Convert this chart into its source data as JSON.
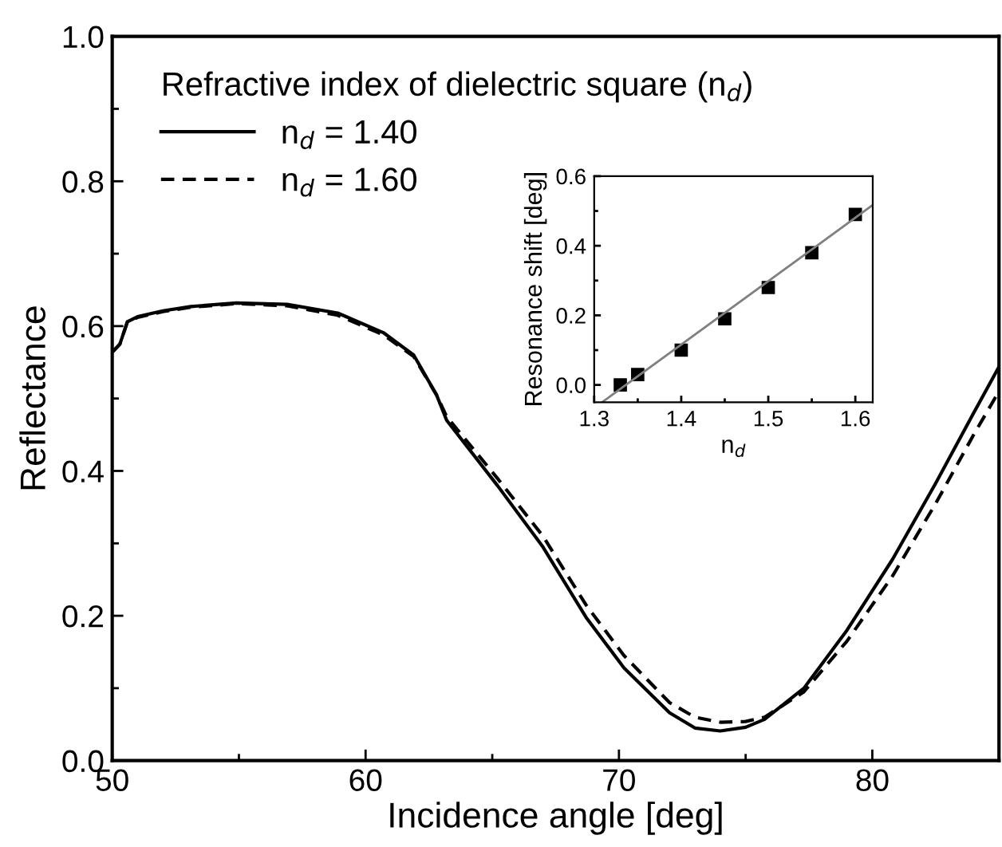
{
  "chart_data": [
    {
      "type": "line",
      "xlabel": "Incidence angle [deg]",
      "ylabel": "Reflectance",
      "legend_title": "Refractive index of dielectric square (n$_{d}$)",
      "legend": "top left",
      "marker": "none",
      "xlim": [
        50,
        85
      ],
      "xticks": [
        50,
        {
          "value": 55,
          "label": null
        },
        60,
        {
          "value": 65,
          "label": null
        },
        70,
        {
          "value": 75,
          "label": null
        },
        80
      ],
      "ylim": [
        0,
        1.0
      ],
      "yticks": [
        "0.0",
        {
          "value": 0.1,
          "label": null
        },
        0.2,
        {
          "value": 0.3,
          "label": null
        },
        0.4,
        {
          "value": 0.5,
          "label": null
        },
        0.6,
        {
          "value": 0.7,
          "label": null
        },
        0.8,
        {
          "value": 0.9,
          "label": null
        },
        "1.0"
      ],
      "series": [
        {
          "name": "n$_{d}$ = 1.40",
          "color": "#000000",
          "line_style": "solid",
          "x": [
            50,
            50.3,
            50.6,
            51,
            52,
            53.1,
            54.9,
            56.9,
            58.9,
            60.7,
            61.9,
            62.8,
            63.2,
            65.2,
            67.0,
            68.7,
            70.2,
            72.0,
            73.0,
            74.0,
            75.0,
            75.75,
            77.3,
            79.0,
            80.8,
            82.5,
            84.0,
            85
          ],
          "values": [
            0.564,
            0.575,
            0.606,
            0.613,
            0.621,
            0.627,
            0.632,
            0.63,
            0.618,
            0.591,
            0.56,
            0.505,
            0.47,
            0.38,
            0.295,
            0.198,
            0.128,
            0.066,
            0.045,
            0.041,
            0.046,
            0.057,
            0.1,
            0.18,
            0.278,
            0.383,
            0.48,
            0.544
          ]
        },
        {
          "name": "n$_{d}$ = 1.60",
          "color": "#000000",
          "line_style": "dashed",
          "x": [
            50,
            50.3,
            50.6,
            51,
            52,
            53.1,
            54.9,
            56.9,
            58.9,
            60.7,
            61.9,
            62.8,
            63.2,
            65.2,
            67.0,
            68.7,
            70.2,
            72.0,
            73.0,
            74.0,
            75.0,
            75.75,
            77.3,
            79.0,
            80.8,
            82.5,
            84.0,
            85
          ],
          "values": [
            0.564,
            0.575,
            0.606,
            0.612,
            0.62,
            0.626,
            0.631,
            0.628,
            0.615,
            0.588,
            0.558,
            0.505,
            0.475,
            0.39,
            0.31,
            0.215,
            0.145,
            0.08,
            0.06,
            0.053,
            0.054,
            0.06,
            0.095,
            0.165,
            0.255,
            0.355,
            0.45,
            0.51
          ]
        }
      ]
    },
    {
      "type": "scatter",
      "xlabel": "n$_{d}$",
      "ylabel": "Resonance shift [deg]",
      "marker": "square",
      "xlim": [
        1.3,
        1.62
      ],
      "xticks": [
        1.3,
        {
          "value": 1.35,
          "label": null
        },
        1.4,
        {
          "value": 1.45,
          "label": null
        },
        1.5,
        {
          "value": 1.55,
          "label": null
        },
        1.6
      ],
      "ylim": [
        -0.05,
        0.6
      ],
      "yticks": [
        "0.0",
        {
          "value": 0.1,
          "label": null
        },
        0.2,
        {
          "value": 0.3,
          "label": null
        },
        0.4,
        {
          "value": 0.5,
          "label": null
        },
        0.6
      ],
      "series": [
        {
          "color": "#000000",
          "x": [
            1.33,
            1.35,
            1.4,
            1.45,
            1.5,
            1.55,
            1.6
          ],
          "values": [
            0.0,
            0.03,
            0.1,
            0.19,
            0.28,
            0.38,
            0.49
          ]
        },
        {
          "type": "line",
          "color": "#808080",
          "line_style": "solid",
          "marker": "none",
          "x": [
            1.309,
            1.62
          ],
          "values": [
            -0.05,
            0.517
          ]
        }
      ]
    }
  ]
}
